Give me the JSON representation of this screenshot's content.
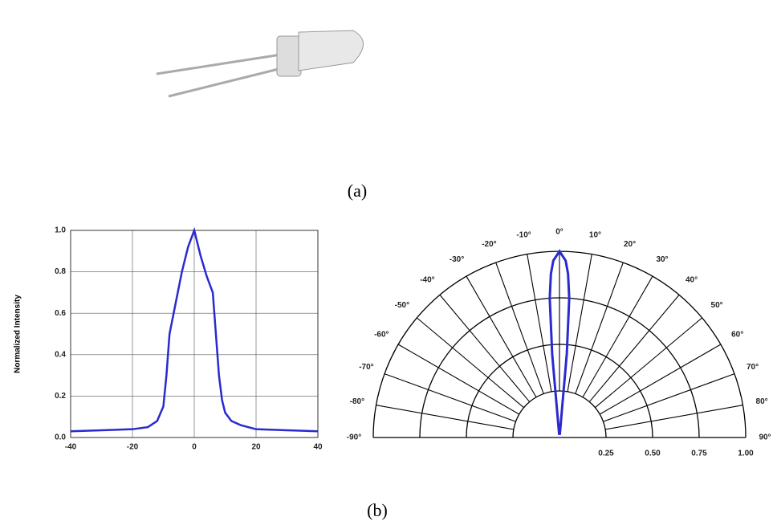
{
  "captions": [
    "(a)",
    "(b)"
  ],
  "chart_data": [
    {
      "type": "line",
      "ylabel": "Normalized Intensity",
      "color": "#2a2ad0",
      "grid": true,
      "x": [
        -40,
        -30,
        -20,
        -15,
        -12,
        -10,
        -9,
        -8,
        -6,
        -4,
        -2,
        0,
        2,
        4,
        6,
        7,
        8,
        9,
        10,
        12,
        15,
        20,
        30,
        40
      ],
      "values": [
        0.03,
        0.035,
        0.04,
        0.05,
        0.08,
        0.15,
        0.3,
        0.5,
        0.65,
        0.8,
        0.92,
        1.0,
        0.88,
        0.78,
        0.7,
        0.5,
        0.3,
        0.18,
        0.12,
        0.08,
        0.06,
        0.04,
        0.035,
        0.03
      ],
      "xlim": [
        -40,
        40
      ],
      "xticks": [
        -40,
        -20,
        0,
        20,
        40
      ],
      "ylim": [
        0,
        1
      ],
      "yticks": [
        {
          "value": 0,
          "label": "0.0"
        },
        0.2,
        0.4,
        0.6,
        0.8,
        {
          "value": 1,
          "label": "1.0"
        }
      ]
    },
    {
      "type": "polar",
      "color": "#2a2ad0",
      "theta": [
        -6,
        -5,
        -4,
        -3,
        -2,
        0,
        2,
        3,
        4,
        5,
        6
      ],
      "values": [
        0.02,
        0.45,
        0.75,
        0.88,
        0.95,
        1.0,
        0.95,
        0.88,
        0.75,
        0.45,
        0.02
      ],
      "rlim": [
        0,
        1
      ],
      "rticks": [
        0.25,
        {
          "value": 0.5,
          "label": "0.50"
        },
        0.75,
        {
          "value": 1,
          "label": "1.00"
        }
      ],
      "thetaticks": [
        {
          "value": -90,
          "label": "-90°"
        },
        {
          "value": -80,
          "label": "-80°"
        },
        {
          "value": -70,
          "label": "-70°"
        },
        {
          "value": -60,
          "label": "-60°"
        },
        {
          "value": -50,
          "label": "-50°"
        },
        {
          "value": -40,
          "label": "-40°"
        },
        {
          "value": -30,
          "label": "-30°"
        },
        {
          "value": -20,
          "label": "-20°"
        },
        {
          "value": -10,
          "label": "-10°"
        },
        {
          "value": 0,
          "label": "0°"
        },
        {
          "value": 10,
          "label": "10°"
        },
        {
          "value": 20,
          "label": "20°"
        },
        {
          "value": 30,
          "label": "30°"
        },
        {
          "value": 40,
          "label": "40°"
        },
        {
          "value": 50,
          "label": "50°"
        },
        {
          "value": 60,
          "label": "60°"
        },
        {
          "value": 70,
          "label": "70°"
        },
        {
          "value": 80,
          "label": "80°"
        },
        {
          "value": 90,
          "label": "90°"
        }
      ]
    }
  ]
}
